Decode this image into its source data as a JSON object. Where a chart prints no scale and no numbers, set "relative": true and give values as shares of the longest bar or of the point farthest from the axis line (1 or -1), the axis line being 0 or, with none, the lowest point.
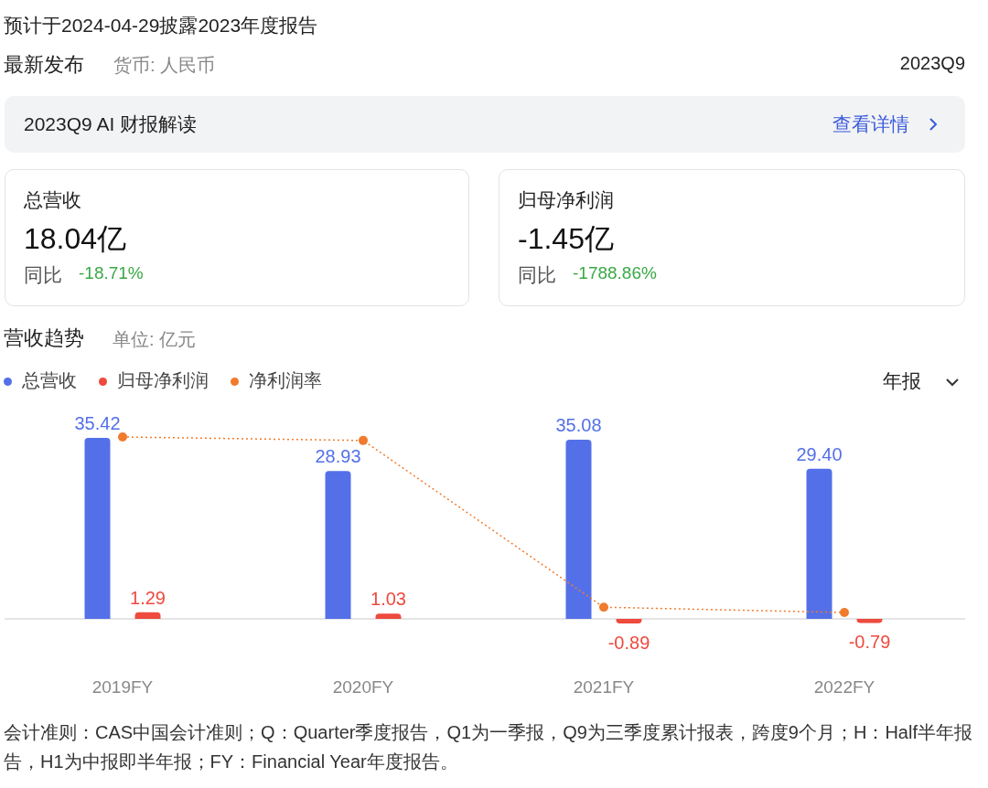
{
  "chart_data": [
    {
      "type": "other",
      "title": "预计于2024-04-29披露2023年度报告",
      "annotations": [
        "最新发布",
        "货币: 人民币",
        "2023Q9",
        "2023Q9 AI 财报解读",
        "查看详情",
        "总营收",
        "18.04亿",
        "同比",
        "-18.71%",
        "归母净利润",
        "-1.45亿",
        "同比",
        "-1788.86%"
      ]
    },
    {
      "type": "bar",
      "title": "营收趋势",
      "subtitle": "单位: 亿元",
      "categories": [
        "2019FY",
        "2020FY",
        "2021FY",
        "2022FY"
      ],
      "legend": "top left",
      "series": [
        {
          "name": "总营收",
          "color": "#5470e8",
          "values": [
            35.42,
            28.93,
            35.08,
            29.4
          ],
          "value_labels": [
            "35.42",
            "28.93",
            "35.08",
            "29.40"
          ]
        },
        {
          "name": "归母净利润",
          "color": "#ee4a3e",
          "values": [
            1.29,
            1.03,
            -0.89,
            -0.79
          ],
          "value_labels": [
            "1.29",
            "1.03",
            "-0.89",
            "-0.79"
          ]
        }
      ],
      "annotations": [
        "年报",
        "会计准则：CAS中国会计准则；Q：Quarter季度报告，Q1为一季报，Q9为三季度累计报表，跨度9个月；H：Half半年报告，H1为中报即半年报；FY：Financial Year年度报告。"
      ]
    },
    {
      "type": "line",
      "relative": true,
      "categories": [
        null,
        null,
        null,
        null
      ],
      "legend": "top left",
      "marker": "circle",
      "line_style": "dotted",
      "series": [
        {
          "name": "净利润率",
          "color": "#f07b2c",
          "values": [
            1,
            0.98,
            0.03,
            0
          ]
        }
      ]
    }
  ]
}
